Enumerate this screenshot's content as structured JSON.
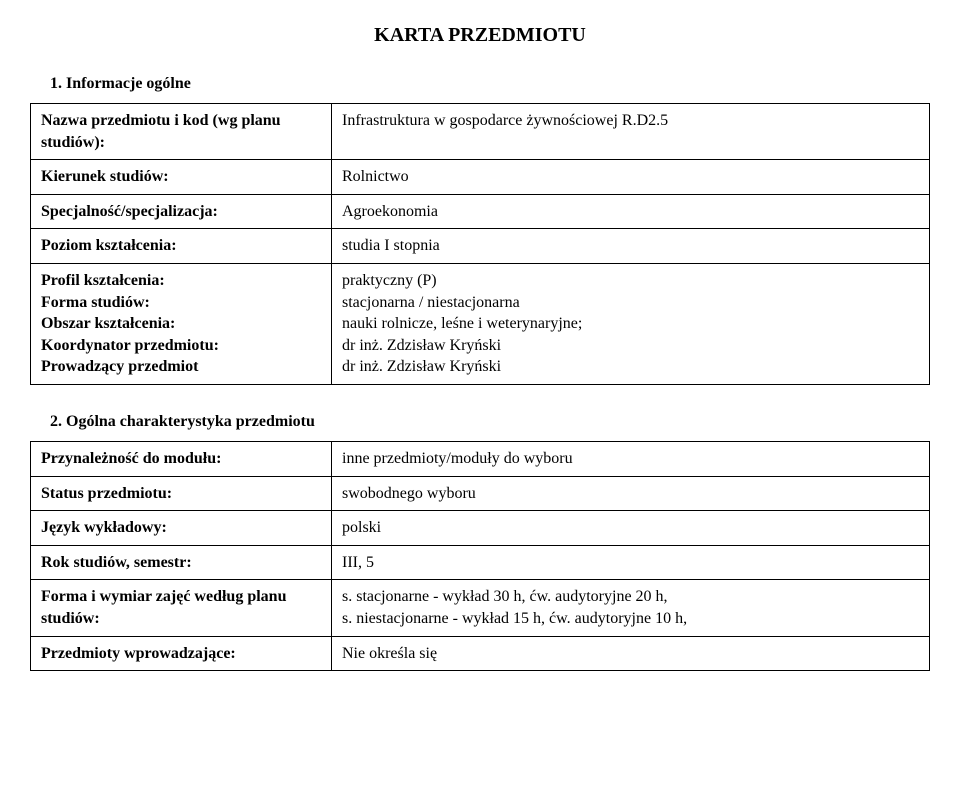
{
  "doc": {
    "title": "KARTA PRZEDMIOTU",
    "section1_heading": "1. Informacje ogólne",
    "section2_heading": "2. Ogólna charakterystyka przedmiotu"
  },
  "section1": {
    "rows": [
      {
        "label": "Nazwa przedmiotu i kod (wg planu studiów):",
        "value": "Infrastruktura w gospodarce żywnościowej R.D2.5"
      },
      {
        "label": "Kierunek studiów:",
        "value": "Rolnictwo"
      },
      {
        "label": "Specjalność/specjalizacja:",
        "value": "Agroekonomia"
      },
      {
        "label": "Poziom kształcenia:",
        "value": "studia I stopnia"
      }
    ],
    "block": {
      "labels": [
        "Profil kształcenia:",
        "Forma studiów:",
        "Obszar kształcenia:",
        "Koordynator przedmiotu:",
        "Prowadzący przedmiot"
      ],
      "values": [
        "praktyczny (P)",
        "stacjonarna  / niestacjonarna",
        "nauki rolnicze, leśne i weterynaryjne;",
        "dr inż. Zdzisław Kryński",
        "dr inż. Zdzisław Kryński"
      ]
    }
  },
  "section2": {
    "rows": [
      {
        "label": "Przynależność do modułu:",
        "value": "inne przedmioty/moduły do wyboru"
      },
      {
        "label": "Status przedmiotu:",
        "value": "swobodnego wyboru"
      },
      {
        "label": "Język wykładowy:",
        "value": "polski"
      },
      {
        "label": "Rok studiów, semestr:",
        "value": "III, 5"
      }
    ],
    "multi": {
      "label": "Forma i wymiar zajęć według planu studiów:",
      "value_lines": [
        "s. stacjonarne - wykład 30 h, ćw. audytoryjne 20 h,",
        "s. niestacjonarne - wykład 15 h, ćw. audytoryjne 10 h,"
      ]
    },
    "last": {
      "label": "Przedmioty wprowadzające:",
      "value": "Nie określa się"
    }
  }
}
